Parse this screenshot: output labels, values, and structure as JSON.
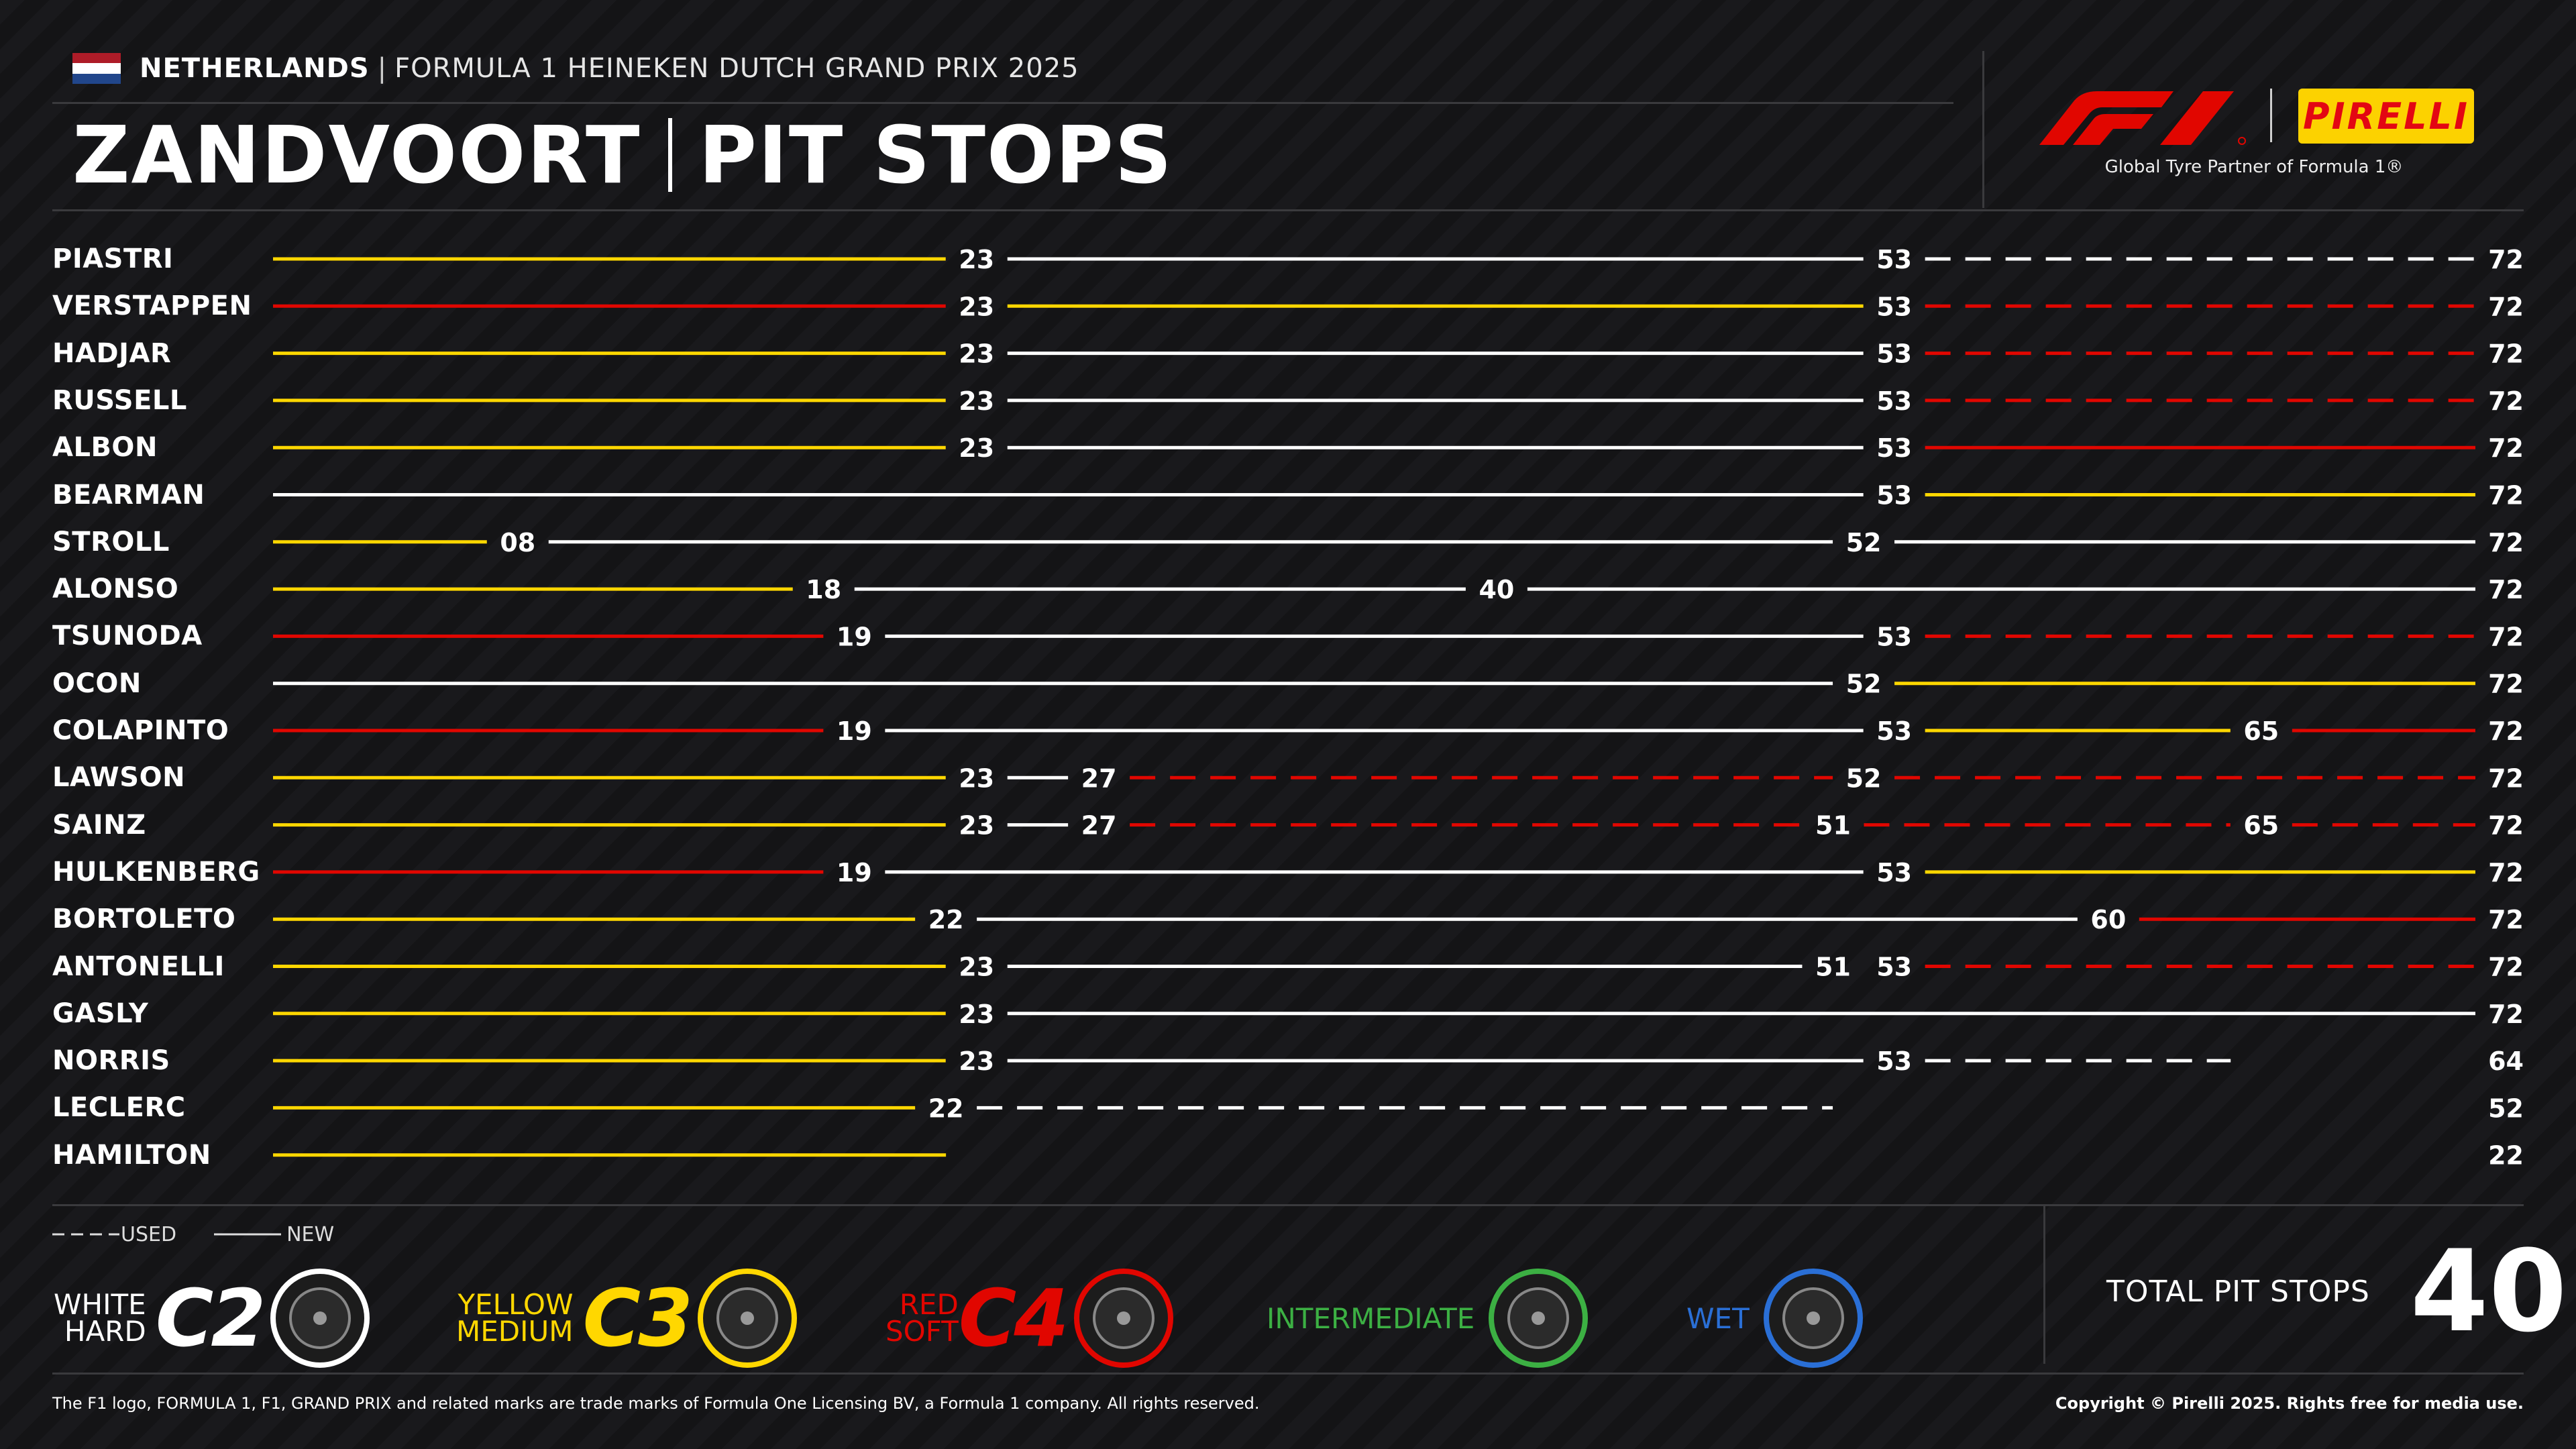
{
  "header": {
    "country": "NETHERLANDS",
    "separator": "|",
    "event": "FORMULA 1 HEINEKEN DUTCH GRAND PRIX 2025",
    "title_left": "ZANDVOORT",
    "title_right": "PIT STOPS",
    "partner_line": "Global Tyre Partner of Formula 1®",
    "pirelli_logo_text": "PIRELLI",
    "flag_colors": [
      "#ae1c28",
      "#ffffff",
      "#21468b"
    ]
  },
  "chart_data": {
    "type": "stint-timeline",
    "x_unit": "lap",
    "compound_colors": {
      "HARD": "#ffffff",
      "MEDIUM": "#ffd700",
      "SOFT": "#e10600"
    },
    "drivers": [
      {
        "name": "PIASTRI",
        "stints": [
          {
            "end": 23,
            "c": "MEDIUM",
            "used": false
          },
          {
            "end": 53,
            "c": "HARD",
            "used": false
          },
          {
            "end": 72,
            "c": "HARD",
            "used": true
          }
        ]
      },
      {
        "name": "VERSTAPPEN",
        "stints": [
          {
            "end": 23,
            "c": "SOFT",
            "used": false
          },
          {
            "end": 53,
            "c": "MEDIUM",
            "used": false
          },
          {
            "end": 72,
            "c": "SOFT",
            "used": true
          }
        ]
      },
      {
        "name": "HADJAR",
        "stints": [
          {
            "end": 23,
            "c": "MEDIUM",
            "used": false
          },
          {
            "end": 53,
            "c": "HARD",
            "used": false
          },
          {
            "end": 72,
            "c": "SOFT",
            "used": true
          }
        ]
      },
      {
        "name": "RUSSELL",
        "stints": [
          {
            "end": 23,
            "c": "MEDIUM",
            "used": false
          },
          {
            "end": 53,
            "c": "HARD",
            "used": false
          },
          {
            "end": 72,
            "c": "SOFT",
            "used": true
          }
        ]
      },
      {
        "name": "ALBON",
        "stints": [
          {
            "end": 23,
            "c": "MEDIUM",
            "used": false
          },
          {
            "end": 53,
            "c": "HARD",
            "used": false
          },
          {
            "end": 72,
            "c": "SOFT",
            "used": false
          }
        ]
      },
      {
        "name": "BEARMAN",
        "stints": [
          {
            "end": 53,
            "c": "HARD",
            "used": false
          },
          {
            "end": 72,
            "c": "MEDIUM",
            "used": false
          }
        ]
      },
      {
        "name": "STROLL",
        "stints": [
          {
            "end": 8,
            "label": "08",
            "c": "MEDIUM",
            "used": false
          },
          {
            "end": 52,
            "c": "HARD",
            "used": false
          },
          {
            "end": 72,
            "c": "HARD",
            "used": false
          }
        ]
      },
      {
        "name": "ALONSO",
        "stints": [
          {
            "end": 18,
            "c": "MEDIUM",
            "used": false
          },
          {
            "end": 40,
            "c": "HARD",
            "used": false
          },
          {
            "end": 72,
            "c": "HARD",
            "used": false
          }
        ]
      },
      {
        "name": "TSUNODA",
        "stints": [
          {
            "end": 19,
            "c": "SOFT",
            "used": false
          },
          {
            "end": 53,
            "c": "HARD",
            "used": false
          },
          {
            "end": 72,
            "c": "SOFT",
            "used": true
          }
        ]
      },
      {
        "name": "OCON",
        "stints": [
          {
            "end": 52,
            "c": "HARD",
            "used": false
          },
          {
            "end": 72,
            "c": "MEDIUM",
            "used": false
          }
        ]
      },
      {
        "name": "COLAPINTO",
        "stints": [
          {
            "end": 19,
            "c": "SOFT",
            "used": false
          },
          {
            "end": 53,
            "c": "HARD",
            "used": false
          },
          {
            "end": 65,
            "c": "MEDIUM",
            "used": false
          },
          {
            "end": 72,
            "c": "SOFT",
            "used": false
          }
        ]
      },
      {
        "name": "LAWSON",
        "stints": [
          {
            "end": 23,
            "c": "MEDIUM",
            "used": false
          },
          {
            "end": 27,
            "c": "HARD",
            "used": false
          },
          {
            "end": 52,
            "c": "SOFT",
            "used": true
          },
          {
            "end": 72,
            "c": "SOFT",
            "used": true
          }
        ]
      },
      {
        "name": "SAINZ",
        "stints": [
          {
            "end": 23,
            "c": "MEDIUM",
            "used": false
          },
          {
            "end": 27,
            "c": "HARD",
            "used": false
          },
          {
            "end": 51,
            "c": "SOFT",
            "used": true
          },
          {
            "end": 65,
            "c": "SOFT",
            "used": true
          },
          {
            "end": 72,
            "c": "SOFT",
            "used": true
          }
        ]
      },
      {
        "name": "HULKENBERG",
        "stints": [
          {
            "end": 19,
            "c": "SOFT",
            "used": false
          },
          {
            "end": 53,
            "c": "HARD",
            "used": false
          },
          {
            "end": 72,
            "c": "MEDIUM",
            "used": false
          }
        ]
      },
      {
        "name": "BORTOLETO",
        "stints": [
          {
            "end": 22,
            "c": "MEDIUM",
            "used": false
          },
          {
            "end": 60,
            "c": "HARD",
            "used": false
          },
          {
            "end": 72,
            "c": "SOFT",
            "used": false
          }
        ]
      },
      {
        "name": "ANTONELLI",
        "stints": [
          {
            "end": 23,
            "c": "MEDIUM",
            "used": false
          },
          {
            "end": 51,
            "c": "HARD",
            "used": false
          },
          {
            "end": 53,
            "c": "SOFT",
            "used": true
          },
          {
            "end": 72,
            "c": "SOFT",
            "used": true
          }
        ]
      },
      {
        "name": "GASLY",
        "stints": [
          {
            "end": 23,
            "c": "MEDIUM",
            "used": false
          },
          {
            "end": 72,
            "c": "HARD",
            "used": false
          }
        ]
      },
      {
        "name": "NORRIS",
        "stints": [
          {
            "end": 23,
            "c": "MEDIUM",
            "used": false
          },
          {
            "end": 53,
            "c": "HARD",
            "used": false
          },
          {
            "end": 64,
            "c": "HARD",
            "used": true
          }
        ]
      },
      {
        "name": "LECLERC",
        "stints": [
          {
            "end": 22,
            "c": "MEDIUM",
            "used": false
          },
          {
            "end": 52,
            "c": "HARD",
            "used": true
          },
          {
            "end": 52,
            "c": "SOFT",
            "used": true
          }
        ]
      },
      {
        "name": "HAMILTON",
        "stints": [
          {
            "end": 22,
            "c": "MEDIUM",
            "used": false
          }
        ]
      }
    ]
  },
  "legend": {
    "used": "USED",
    "new": "NEW",
    "tyres": [
      {
        "color_word": "WHITE",
        "name": "HARD",
        "code": "C2",
        "color": "#ffffff"
      },
      {
        "color_word": "YELLOW",
        "name": "MEDIUM",
        "code": "C3",
        "color": "#ffd700"
      },
      {
        "color_word": "RED",
        "name": "SOFT",
        "code": "C4",
        "color": "#e10600"
      },
      {
        "name": "INTERMEDIATE",
        "color": "#3cb043"
      },
      {
        "name": "WET",
        "color": "#2a6fd6"
      }
    ]
  },
  "totals": {
    "label": "TOTAL PIT STOPS",
    "value": "40"
  },
  "footer": {
    "left": "The F1 logo, FORMULA 1, F1, GRAND PRIX and related marks are trade marks of Formula One Licensing BV, a Formula 1 company. All rights reserved.",
    "right": "Copyright © Pirelli 2025. Rights free for media use."
  }
}
